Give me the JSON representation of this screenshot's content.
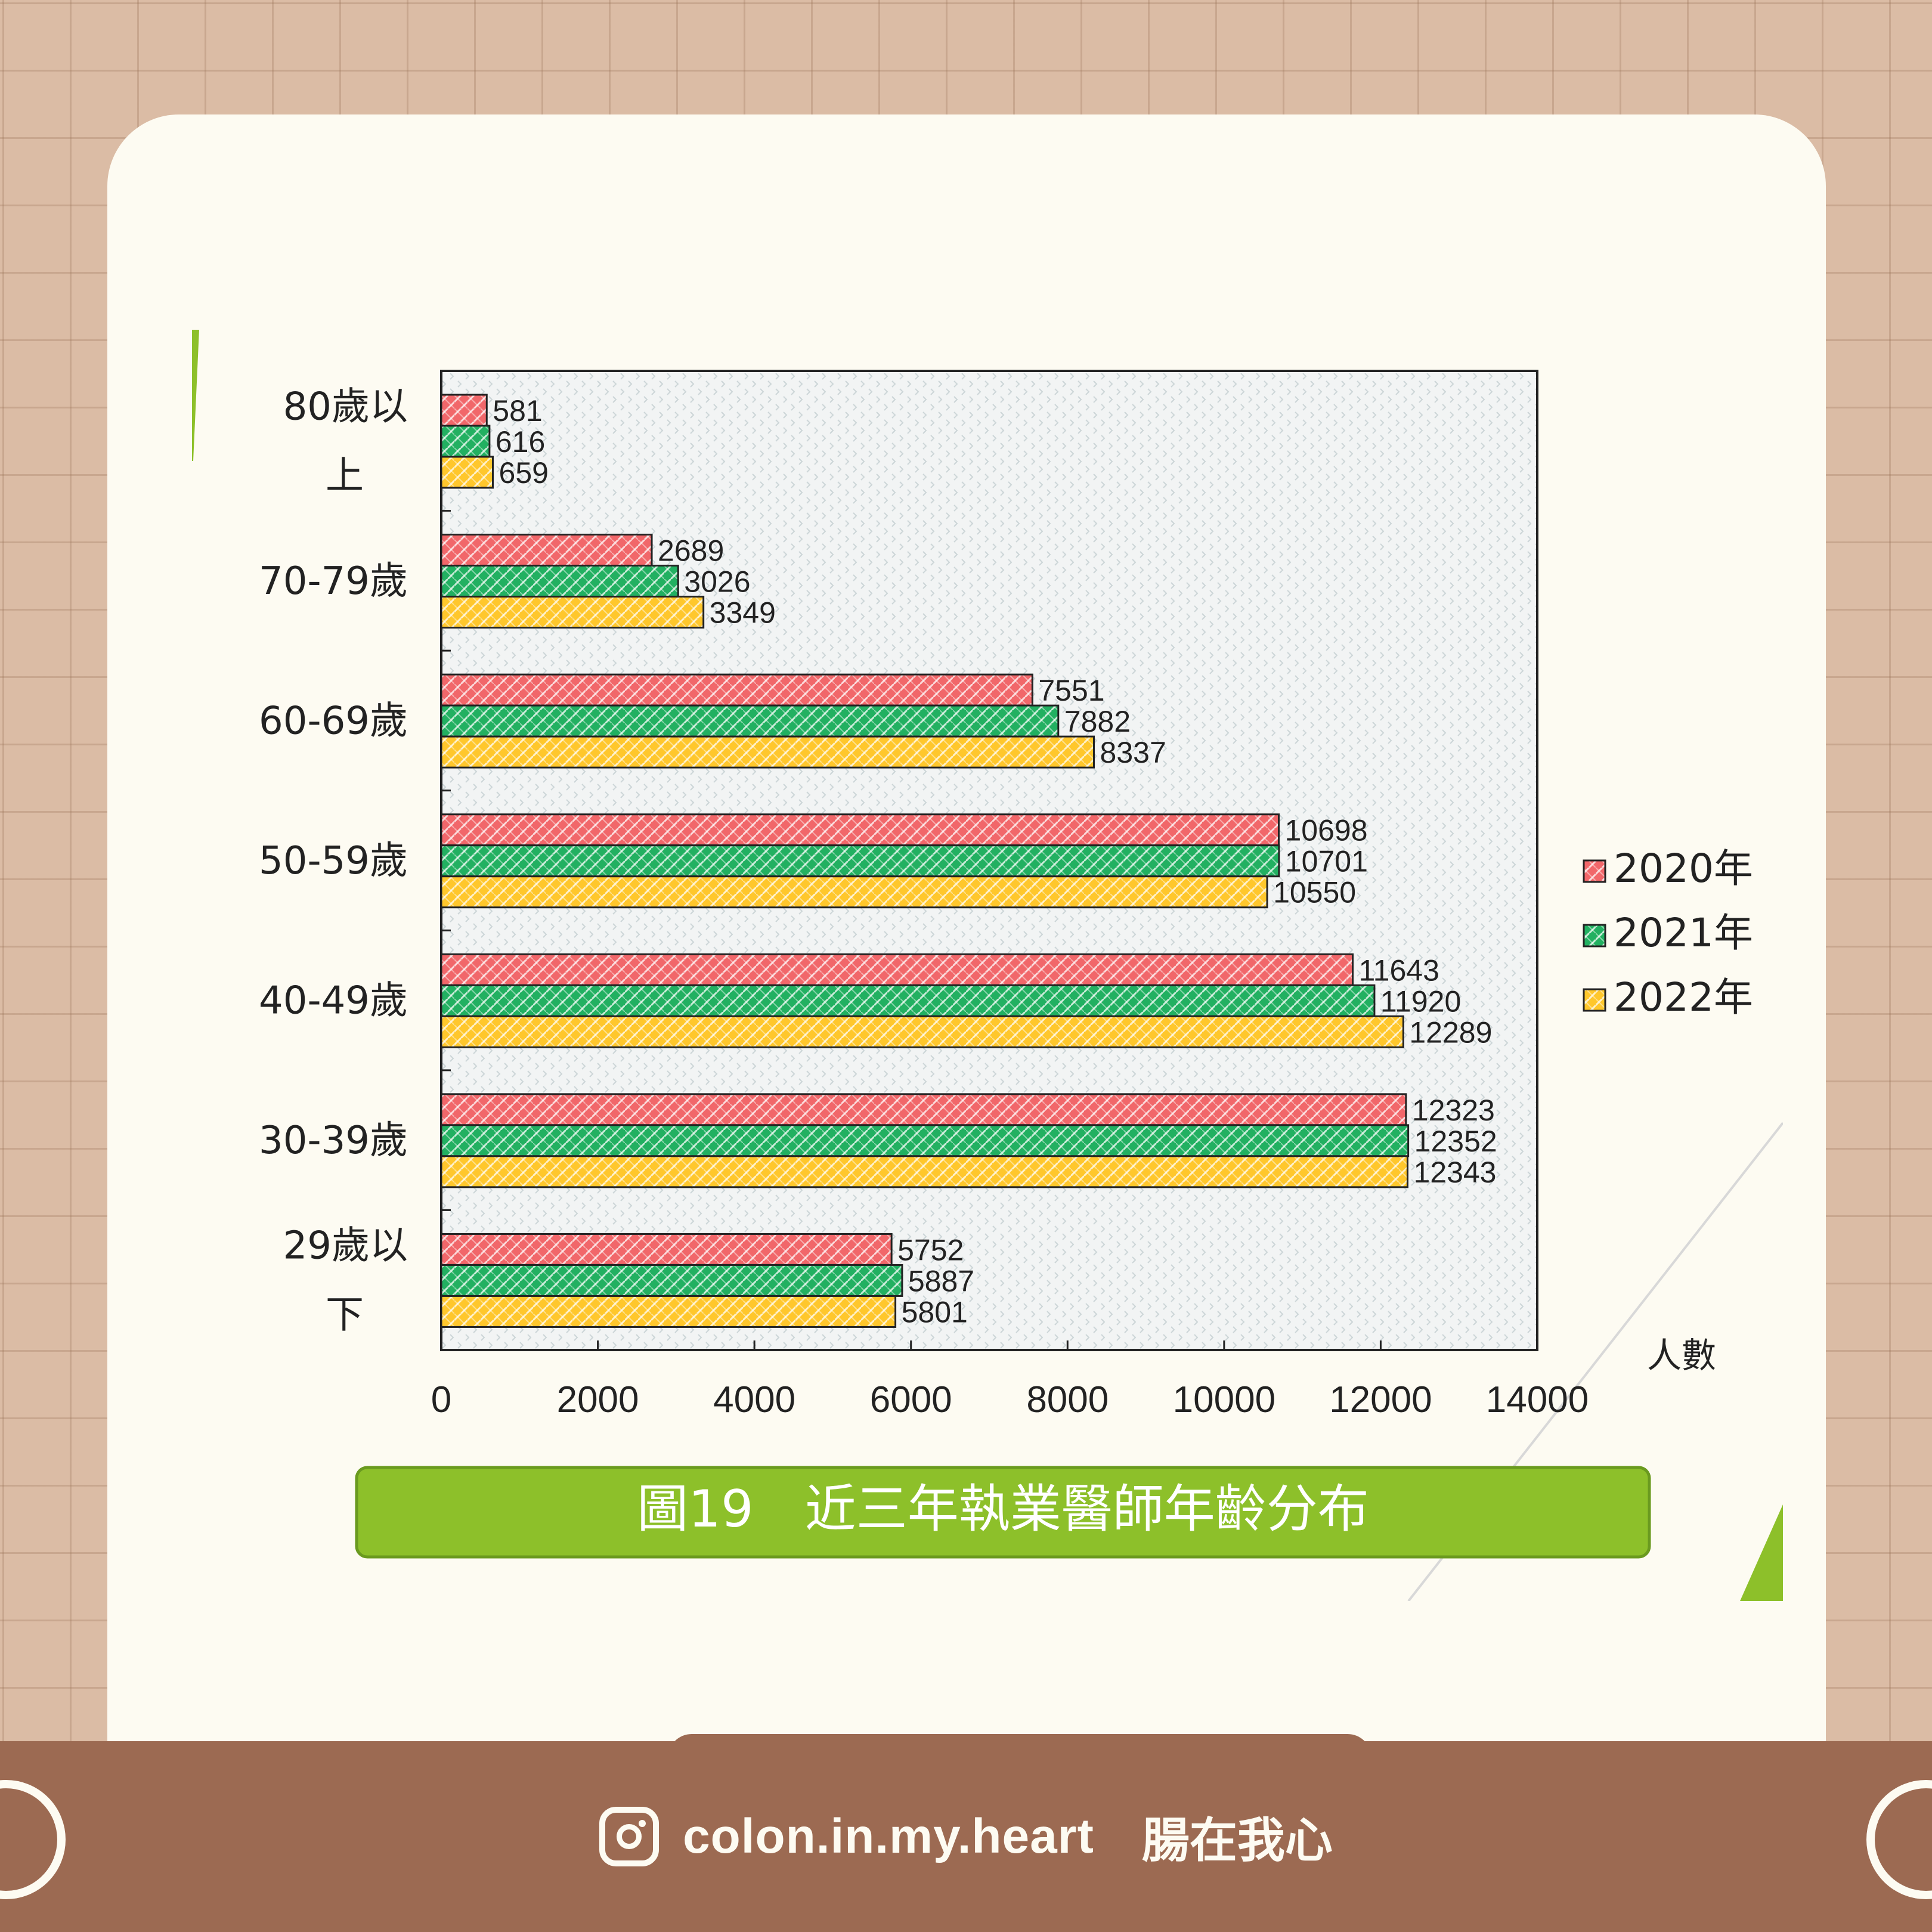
{
  "chart_data": {
    "type": "bar",
    "orientation": "horizontal",
    "categories": [
      "80歲以上",
      "70-79歲",
      "60-69歲",
      "50-59歲",
      "40-49歲",
      "30-39歲",
      "29歲以下"
    ],
    "category_lines": [
      [
        "80歲以",
        "上"
      ],
      [
        "70-79歲"
      ],
      [
        "60-69歲"
      ],
      [
        "50-59歲"
      ],
      [
        "40-49歲"
      ],
      [
        "30-39歲"
      ],
      [
        "29歲以",
        "下"
      ]
    ],
    "series": [
      {
        "name": "2020年",
        "color": "#f1676a",
        "values": [
          581,
          2689,
          7551,
          10698,
          11643,
          12323,
          5752
        ]
      },
      {
        "name": "2021年",
        "color": "#22b061",
        "values": [
          616,
          3026,
          7882,
          10701,
          11920,
          12352,
          5887
        ]
      },
      {
        "name": "2022年",
        "color": "#ffc72c",
        "values": [
          659,
          3349,
          8337,
          10550,
          12289,
          12343,
          5801
        ]
      }
    ],
    "xlim": [
      0,
      14000
    ],
    "xticks": [
      0,
      2000,
      4000,
      6000,
      8000,
      10000,
      12000,
      14000
    ],
    "xlabel": "人數",
    "ylabel": "",
    "legend_position": "right",
    "title": "圖19　近三年執業醫師年齡分布",
    "title_color": "#8dc02a"
  },
  "footer": {
    "icon": "instagram-icon",
    "handle": "colon.in.my.heart",
    "brand": "腸在我心"
  }
}
